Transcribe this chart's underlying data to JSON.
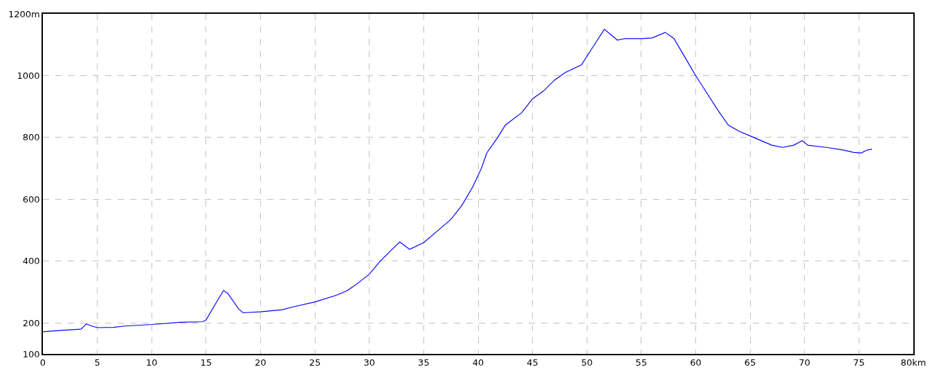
{
  "chart_data": {
    "type": "line",
    "xlim": [
      0,
      80
    ],
    "ylim": [
      100,
      1200
    ],
    "xticks": [
      0,
      5,
      10,
      15,
      20,
      25,
      30,
      35,
      40,
      45,
      50,
      55,
      60,
      65,
      70,
      75,
      {
        "value": 80,
        "label": "80km"
      }
    ],
    "yticks": [
      100,
      200,
      400,
      600,
      800,
      1000,
      {
        "value": 1200,
        "label": "1200m"
      }
    ],
    "grid": true,
    "marker": "none",
    "line_style": "solid",
    "series": [
      {
        "color": "#0000ff",
        "x": [
          0,
          3.5,
          4.0,
          4.5,
          5,
          6.5,
          7.5,
          10,
          12.5,
          14.7,
          15.0,
          16.0,
          16.6,
          17.0,
          18.0,
          18.4,
          20,
          22,
          23,
          25,
          27,
          28,
          29,
          30,
          31,
          32,
          32.8,
          33.7,
          35,
          36.5,
          37.5,
          38.5,
          39.5,
          40.3,
          40.8,
          41.8,
          42.5,
          44,
          45,
          46,
          47,
          48,
          49.5,
          50.5,
          51.6,
          52.8,
          53.5,
          55,
          56,
          57.2,
          58,
          59,
          60,
          61,
          62,
          63,
          64,
          65,
          66,
          67,
          68,
          69,
          69.8,
          70.3,
          72,
          73.5,
          74.5,
          75.2,
          75.8,
          76.2
        ],
        "values": [
          172,
          180,
          197,
          190,
          185,
          186,
          190,
          195,
          202,
          204,
          210,
          270,
          305,
          295,
          245,
          233,
          236,
          243,
          252,
          268,
          290,
          305,
          330,
          358,
          400,
          435,
          462,
          438,
          460,
          505,
          535,
          580,
          640,
          700,
          750,
          800,
          840,
          880,
          925,
          950,
          985,
          1010,
          1035,
          1090,
          1150,
          1115,
          1120,
          1120,
          1122,
          1140,
          1120,
          1060,
          1000,
          945,
          890,
          840,
          820,
          805,
          790,
          775,
          768,
          775,
          790,
          775,
          768,
          760,
          752,
          750,
          760,
          762
        ]
      }
    ]
  }
}
